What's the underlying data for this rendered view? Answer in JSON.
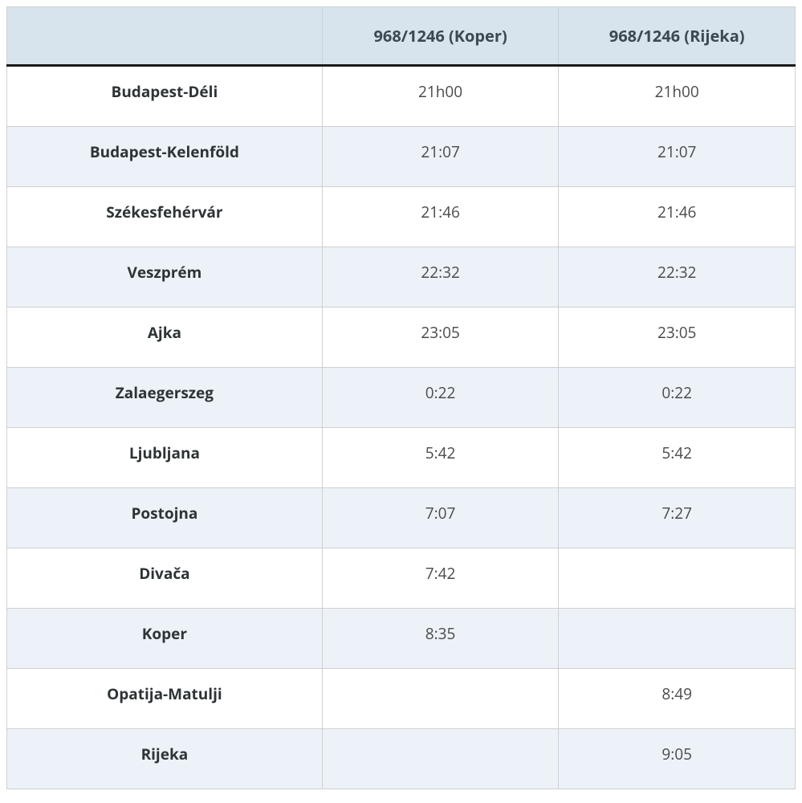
{
  "table": {
    "type": "table",
    "columns": [
      "",
      "968/1246 (Koper)",
      "968/1246 (Rijeka)"
    ],
    "column_widths": [
      "40%",
      "30%",
      "30%"
    ],
    "header_bg": "#d7e3ed",
    "header_text_color": "#3d4852",
    "header_fontsize": 20,
    "header_fontweight": 700,
    "row_odd_bg": "#ffffff",
    "row_even_bg": "#ecf2f8",
    "border_color": "#d0d0d0",
    "header_bottom_border": "#1a1a1a",
    "station_fontweight": 700,
    "station_color": "#2d3436",
    "time_fontweight": 400,
    "time_color": "#4a4a4a",
    "cell_fontsize": 19,
    "rows": [
      {
        "station": "Budapest-Déli",
        "koper": "21h00",
        "rijeka": "21h00"
      },
      {
        "station": "Budapest-Kelenföld",
        "koper": "21:07",
        "rijeka": "21:07"
      },
      {
        "station": "Székesfehérvár",
        "koper": "21:46",
        "rijeka": "21:46"
      },
      {
        "station": "Veszprém",
        "koper": "22:32",
        "rijeka": "22:32"
      },
      {
        "station": "Ajka",
        "koper": "23:05",
        "rijeka": "23:05"
      },
      {
        "station": "Zalaegerszeg",
        "koper": "0:22",
        "rijeka": "0:22"
      },
      {
        "station": "Ljubljana",
        "koper": "5:42",
        "rijeka": "5:42"
      },
      {
        "station": "Postojna",
        "koper": "7:07",
        "rijeka": "7:27"
      },
      {
        "station": "Divača",
        "koper": "7:42",
        "rijeka": ""
      },
      {
        "station": "Koper",
        "koper": "8:35",
        "rijeka": ""
      },
      {
        "station": "Opatija-Matulji",
        "koper": "",
        "rijeka": "8:49"
      },
      {
        "station": "Rijeka",
        "koper": "",
        "rijeka": "9:05"
      }
    ]
  }
}
